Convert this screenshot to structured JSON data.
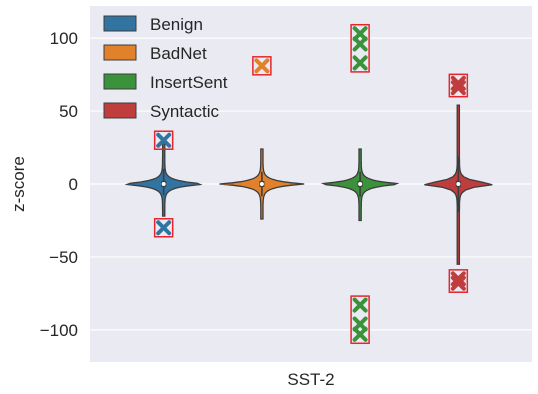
{
  "chart_data": {
    "type": "violin",
    "ylabel": "z-score",
    "xlabel": "SST-2",
    "ylim": [
      -122,
      122
    ],
    "y_ticks": [
      100,
      50,
      0,
      -50,
      -100
    ],
    "y_tick_labels": [
      "100",
      "50",
      "0",
      "−50",
      "−100"
    ],
    "grid": "horizontal",
    "legend_position": "top-left",
    "series": [
      {
        "name": "Benign",
        "color": "#3274a1",
        "whisker": [
          -22,
          30
        ],
        "outliers": [
          30,
          -30
        ]
      },
      {
        "name": "BadNet",
        "color": "#e1812c",
        "whisker": [
          -24,
          24
        ],
        "outliers": [
          81
        ]
      },
      {
        "name": "InsertSent",
        "color": "#3a923a",
        "whisker": [
          -25,
          24
        ],
        "outliers": [
          103,
          96,
          83,
          -83,
          -96,
          -103
        ]
      },
      {
        "name": "Syntactic",
        "color": "#c03d3e",
        "whisker": [
          -55,
          54
        ],
        "outliers": [
          69,
          66,
          -65,
          -68
        ]
      }
    ]
  }
}
